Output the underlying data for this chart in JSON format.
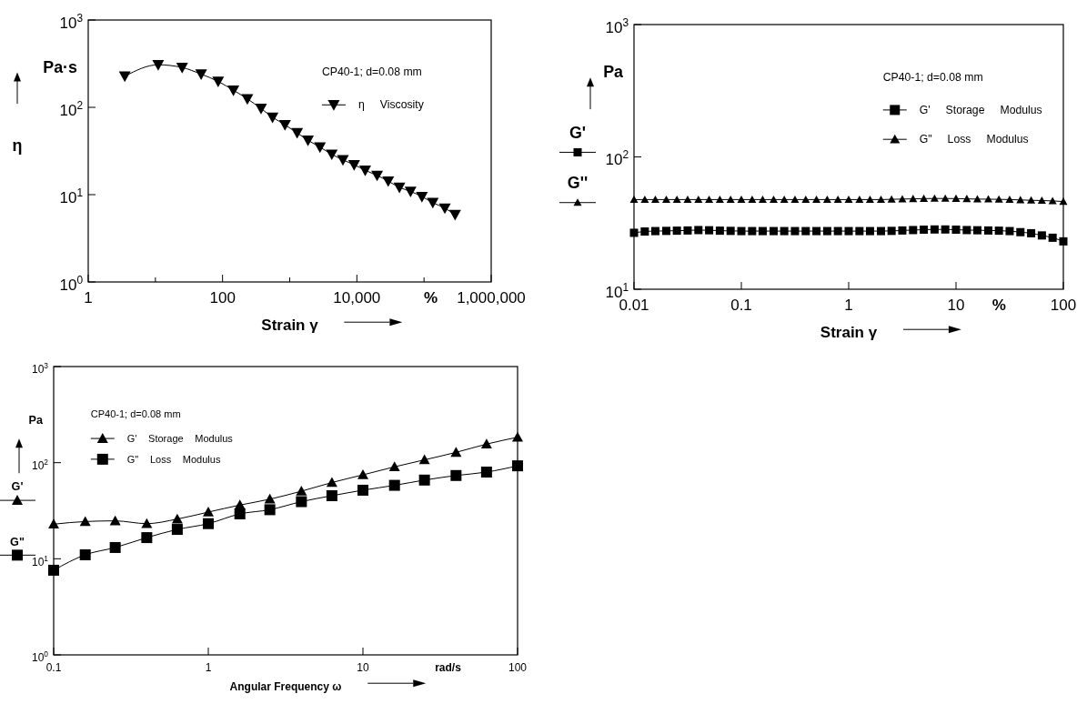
{
  "chart_data": [
    {
      "type": "line",
      "xlabel": "Strain γ",
      "ylabel": "η",
      "log": "xy",
      "marker": "triangle",
      "legend": "top right",
      "grid": false,
      "annotations": [
        "CP40-1; d=0.08 mm",
        "Pa·s",
        "%"
      ],
      "xlim": [
        1,
        1000000
      ],
      "xticks": [
        1,
        {
          "value": 10,
          "label": null
        },
        100,
        {
          "value": 1000,
          "label": null
        },
        {
          "value": 10000,
          "label": "10,000"
        },
        {
          "value": 100000,
          "label": null
        },
        {
          "value": 1000000,
          "label": "1,000,000"
        }
      ],
      "ylim": [
        1,
        1000
      ],
      "yticks": [
        {
          "value": 1,
          "label": "10$^{0}$"
        },
        {
          "value": 10,
          "label": "10$^{1}$"
        },
        {
          "value": 100,
          "label": "10$^{2}$"
        },
        {
          "value": 1000,
          "label": "10$^{3}$"
        }
      ],
      "series": [
        {
          "name": "η Viscosity",
          "color": "#000000",
          "x": [
            3.5,
            11,
            25,
            48,
            86,
            145,
            234,
            374,
            555,
            850,
            1290,
            1870,
            2820,
            4230,
            6200,
            9100,
            13300,
            20000,
            29300,
            43000,
            63000,
            93000,
            135000,
            204000,
            290000
          ],
          "values": [
            227,
            307,
            286,
            240,
            198,
            157,
            125,
            97,
            77,
            63,
            51,
            42,
            35,
            29,
            25,
            22,
            19,
            16.6,
            14.3,
            12.1,
            10.9,
            9.5,
            8.1,
            7.0,
            5.9
          ]
        }
      ]
    },
    {
      "type": "line",
      "xlabel": "Strain γ",
      "ylabel": "G' G''",
      "log": "xy",
      "legend": "top right",
      "grid": false,
      "annotations": [
        "CP40-1; d=0.08 mm",
        "Pa",
        "%"
      ],
      "xlim": [
        0.01,
        100
      ],
      "xticks": [
        0.01,
        0.1,
        1,
        10,
        100
      ],
      "ylim": [
        10,
        1000
      ],
      "yticks": [
        {
          "value": 10,
          "label": "10$^{1}$"
        },
        {
          "value": 100,
          "label": "10$^{2}$"
        },
        {
          "value": 1000,
          "label": "10$^{3}$"
        }
      ],
      "series": [
        {
          "name": "G' Storage Modulus",
          "color": "#000000",
          "marker": "square",
          "x": [
            0.01,
            0.0126,
            0.0158,
            0.02,
            0.0251,
            0.0316,
            0.0398,
            0.0501,
            0.0631,
            0.0794,
            0.1,
            0.126,
            0.158,
            0.2,
            0.251,
            0.316,
            0.398,
            0.501,
            0.631,
            0.794,
            1,
            1.26,
            1.58,
            2,
            2.51,
            3.16,
            3.98,
            5.01,
            6.31,
            7.94,
            10,
            12.6,
            15.8,
            20,
            25.1,
            31.6,
            39.8,
            50.1,
            63.1,
            79.4,
            100
          ],
          "values": [
            26.7,
            27.3,
            27.5,
            27.6,
            27.7,
            27.8,
            28,
            27.9,
            27.7,
            27.6,
            27.5,
            27.5,
            27.5,
            27.5,
            27.5,
            27.5,
            27.5,
            27.5,
            27.5,
            27.5,
            27.5,
            27.5,
            27.5,
            27.5,
            27.6,
            27.8,
            28,
            28.2,
            28.3,
            28.3,
            28.2,
            28,
            27.9,
            27.8,
            27.7,
            27.5,
            27,
            26.5,
            25.5,
            24.5,
            23
          ]
        },
        {
          "name": "G\" Loss Modulus",
          "color": "#000000",
          "marker": "triangle",
          "x": [
            0.01,
            0.0126,
            0.0158,
            0.02,
            0.0251,
            0.0316,
            0.0398,
            0.0501,
            0.0631,
            0.0794,
            0.1,
            0.126,
            0.158,
            0.2,
            0.251,
            0.316,
            0.398,
            0.501,
            0.631,
            0.794,
            1,
            1.26,
            1.58,
            2,
            2.51,
            3.16,
            3.98,
            5.01,
            6.31,
            7.94,
            10,
            12.6,
            15.8,
            20,
            25.1,
            31.6,
            39.8,
            50.1,
            63.1,
            79.4,
            100
          ],
          "values": [
            47.6,
            47.6,
            47.6,
            47.6,
            47.6,
            47.6,
            47.6,
            47.6,
            47.6,
            47.6,
            47.6,
            47.6,
            47.6,
            47.6,
            47.6,
            47.6,
            47.6,
            47.6,
            47.6,
            47.6,
            47.6,
            47.6,
            47.6,
            47.6,
            47.8,
            48,
            48.2,
            48.4,
            48.5,
            48.5,
            48.4,
            48.2,
            48,
            47.9,
            47.8,
            47.6,
            47.3,
            47,
            46.8,
            46.5,
            46
          ]
        }
      ]
    },
    {
      "type": "line",
      "xlabel": "Angular Frequency ω",
      "ylabel": "G' G\"",
      "log": "xy",
      "legend": "top left",
      "grid": false,
      "annotations": [
        "CP40-1; d=0.08 mm",
        "Pa",
        "rad/s"
      ],
      "xlim": [
        0.1,
        100
      ],
      "xticks": [
        0.1,
        1,
        10,
        100
      ],
      "ylim": [
        1,
        1000
      ],
      "yticks": [
        {
          "value": 1,
          "label": "10$^{0}$"
        },
        {
          "value": 10,
          "label": "10$^{1}$"
        },
        {
          "value": 100,
          "label": "10$^{2}$"
        },
        {
          "value": 1000,
          "label": "10$^{3}$"
        }
      ],
      "series": [
        {
          "name": "G' Storage Modulus",
          "color": "#000000",
          "marker": "triangle",
          "x": [
            0.1,
            0.16,
            0.25,
            0.4,
            0.63,
            1,
            1.6,
            2.5,
            4,
            6.3,
            10,
            16,
            25,
            40,
            63,
            100
          ],
          "values": [
            22.9,
            24.4,
            24.8,
            23.2,
            25.9,
            30.6,
            36.2,
            41.7,
            50.5,
            62.1,
            74.7,
            90.5,
            107,
            128,
            156,
            184
          ]
        },
        {
          "name": "G\" Loss Modulus",
          "color": "#000000",
          "marker": "square",
          "x": [
            0.1,
            0.16,
            0.25,
            0.4,
            0.63,
            1,
            1.6,
            2.5,
            4,
            6.3,
            10,
            16,
            25,
            40,
            63,
            100
          ],
          "values": [
            7.6,
            11.0,
            13.1,
            16.6,
            20.2,
            23.2,
            29.3,
            32.4,
            39.3,
            45.3,
            51.7,
            58.1,
            65.9,
            73.5,
            79.8,
            92.7
          ]
        }
      ]
    }
  ]
}
